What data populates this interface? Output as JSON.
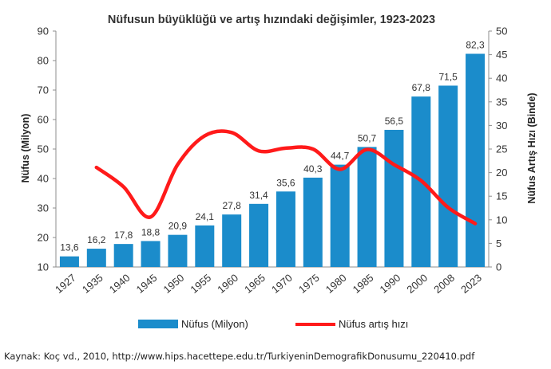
{
  "source_note": "Kaynak: Koç vd., 2010, http://www.hips.hacettepe.edu.tr/TurkiyeninDemografikDonusumu_220410.pdf",
  "colors": {
    "bar": "#1b8ccb",
    "line": "#ff1a1a",
    "axis": "#8c8c8c"
  },
  "chart_data": {
    "type": "bar",
    "title": "Nüfusun büyüklüğü ve artış hızındaki değişimler, 1923-2023",
    "ylabel": "Nüfus (Milyon)",
    "y2label": "Nüfus Artış Hızı (Binde)",
    "ylim": [
      10,
      90
    ],
    "yticks": [
      10,
      20,
      30,
      40,
      50,
      60,
      70,
      80,
      90
    ],
    "y2lim": [
      0,
      50
    ],
    "y2ticks": [
      0,
      5,
      10,
      15,
      20,
      25,
      30,
      35,
      40,
      45,
      50
    ],
    "grid": false,
    "legend_position": "bottom",
    "categories": [
      "1927",
      "1935",
      "1940",
      "1945",
      "1950",
      "1955",
      "1960",
      "1965",
      "1970",
      "1975",
      "1980",
      "1985",
      "1990",
      "2000",
      "2008",
      "2023"
    ],
    "series": [
      {
        "name": "Nüfus (Milyon)",
        "type": "bar",
        "axis": "left",
        "values": [
          13.6,
          16.2,
          17.8,
          18.8,
          20.9,
          24.1,
          27.8,
          31.4,
          35.6,
          40.3,
          44.7,
          50.7,
          56.5,
          67.8,
          71.5,
          82.3
        ],
        "labels": [
          "13,6",
          "16,2",
          "17,8",
          "18,8",
          "20,9",
          "24,1",
          "27,8",
          "31,4",
          "35,6",
          "40,3",
          "44,7",
          "50,7",
          "56,5",
          "67,8",
          "71,5",
          "82,3"
        ]
      },
      {
        "name": "Nüfus artış hızı",
        "type": "line",
        "axis": "right",
        "values": [
          null,
          21.1,
          17.0,
          10.6,
          21.7,
          27.8,
          28.5,
          24.6,
          25.2,
          25.0,
          20.7,
          24.9,
          21.7,
          18.3,
          12.6,
          9.2
        ]
      }
    ]
  }
}
